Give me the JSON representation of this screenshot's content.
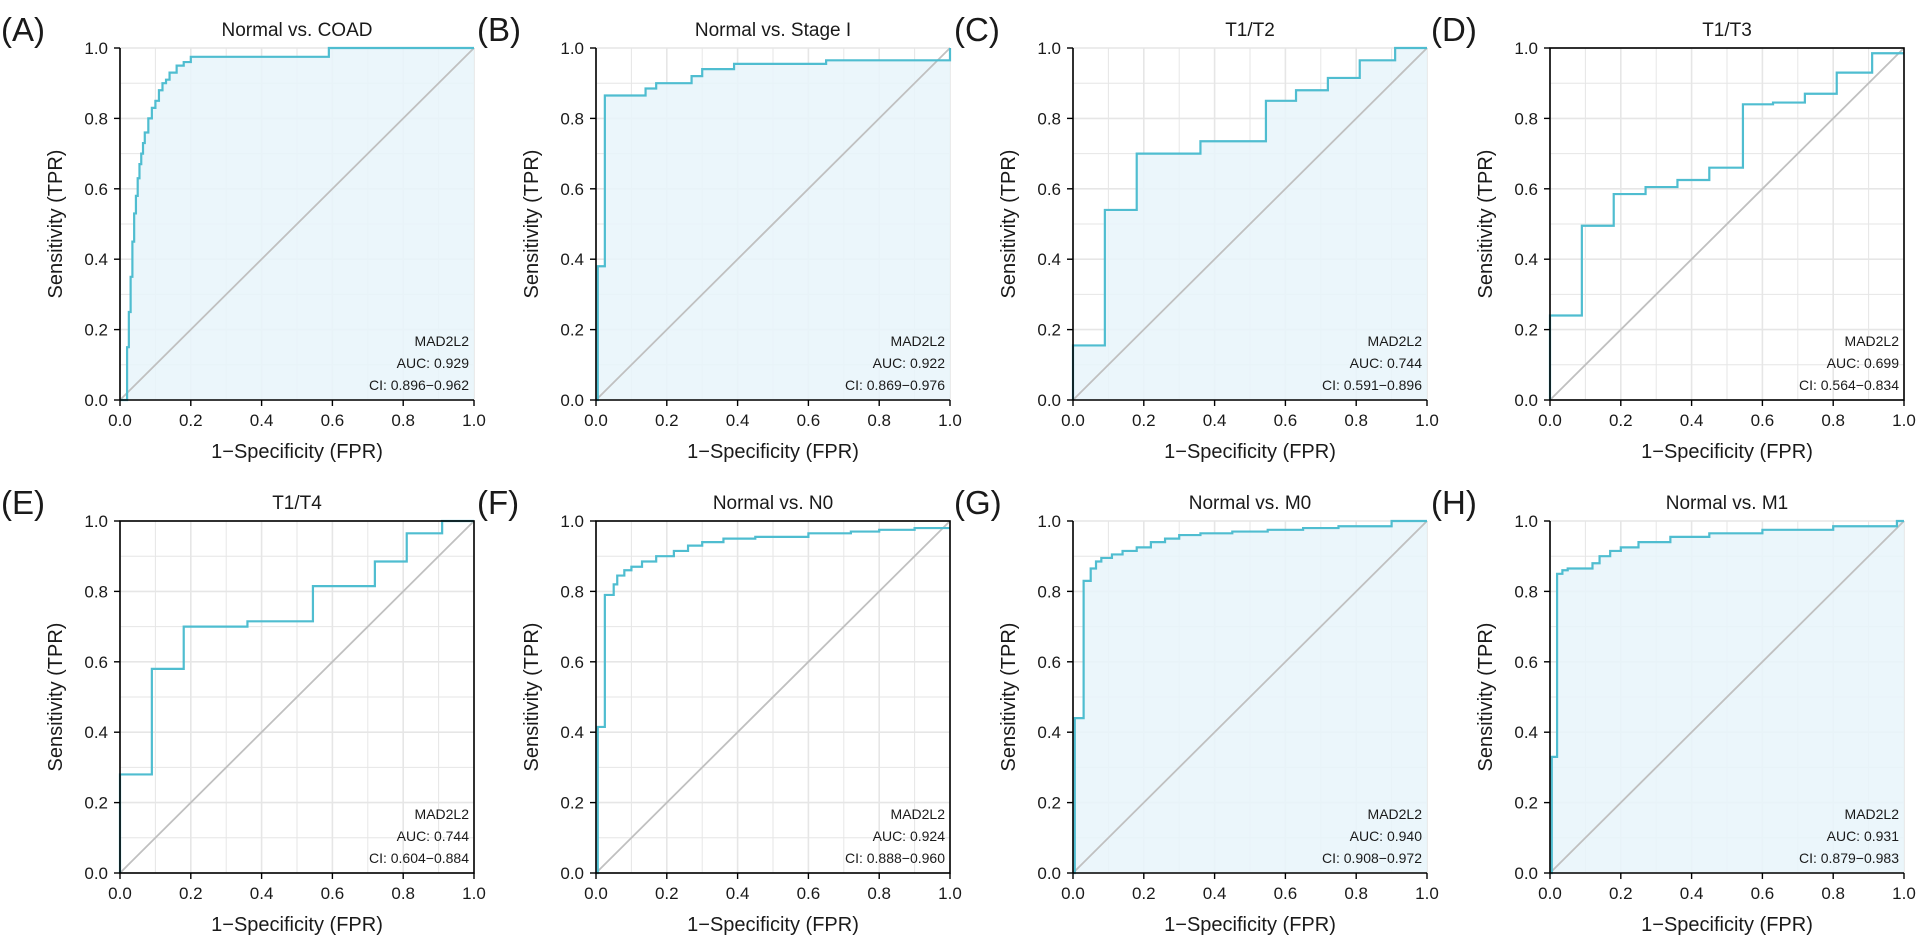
{
  "figure": {
    "panel_letters": [
      "(A)",
      "(B)",
      "(C)",
      "(D)",
      "(E)",
      "(F)",
      "(G)",
      "(H)"
    ],
    "colors": {
      "curve": "#4fbdd0",
      "fill": "#e8f5fa",
      "diagonal": "#c0c0c0",
      "grid": "#e6e6e6",
      "axis": "#000000",
      "text": "#1a1a1a"
    }
  },
  "chart_data": [
    {
      "type": "line",
      "panel": "(A)",
      "title": "Normal vs. COAD",
      "xlabel": "1−Specificity (FPR)",
      "ylabel": "Sensitivity (TPR)",
      "xlim": [
        0,
        1
      ],
      "ylim": [
        0,
        1
      ],
      "xticks": [
        "0.0",
        "0.2",
        "0.4",
        "0.6",
        "0.8",
        "1.0"
      ],
      "yticks": [
        "0.0",
        "0.2",
        "0.4",
        "0.6",
        "0.8",
        "1.0"
      ],
      "grid": true,
      "filled": true,
      "framed": false,
      "legend": [
        "MAD2L2",
        "AUC: 0.929",
        "CI: 0.896−0.962"
      ],
      "x": [
        0,
        0.01,
        0.02,
        0.02,
        0.025,
        0.025,
        0.03,
        0.03,
        0.035,
        0.035,
        0.04,
        0.04,
        0.045,
        0.045,
        0.05,
        0.05,
        0.055,
        0.055,
        0.06,
        0.06,
        0.065,
        0.065,
        0.07,
        0.07,
        0.08,
        0.08,
        0.09,
        0.09,
        0.1,
        0.1,
        0.11,
        0.11,
        0.12,
        0.12,
        0.13,
        0.13,
        0.14,
        0.14,
        0.16,
        0.16,
        0.18,
        0.18,
        0.2,
        0.2,
        0.59,
        0.59,
        1.0
      ],
      "y": [
        0,
        0,
        0,
        0.15,
        0.15,
        0.25,
        0.25,
        0.35,
        0.35,
        0.45,
        0.45,
        0.53,
        0.53,
        0.58,
        0.58,
        0.63,
        0.63,
        0.67,
        0.67,
        0.7,
        0.7,
        0.73,
        0.73,
        0.76,
        0.76,
        0.8,
        0.8,
        0.83,
        0.83,
        0.85,
        0.85,
        0.88,
        0.88,
        0.9,
        0.9,
        0.91,
        0.91,
        0.93,
        0.93,
        0.95,
        0.95,
        0.96,
        0.96,
        0.975,
        0.975,
        1.0,
        1.0
      ]
    },
    {
      "type": "line",
      "panel": "(B)",
      "title": "Normal vs. Stage I",
      "xlabel": "1−Specificity (FPR)",
      "ylabel": "Sensitivity (TPR)",
      "xlim": [
        0,
        1
      ],
      "ylim": [
        0,
        1
      ],
      "xticks": [
        "0.0",
        "0.2",
        "0.4",
        "0.6",
        "0.8",
        "1.0"
      ],
      "yticks": [
        "0.0",
        "0.2",
        "0.4",
        "0.6",
        "0.8",
        "1.0"
      ],
      "grid": true,
      "filled": true,
      "framed": false,
      "legend": [
        "MAD2L2",
        "AUC: 0.922",
        "CI: 0.869−0.976"
      ],
      "x": [
        0,
        0.005,
        0.005,
        0.025,
        0.025,
        0.14,
        0.14,
        0.17,
        0.17,
        0.27,
        0.27,
        0.3,
        0.3,
        0.39,
        0.39,
        0.65,
        0.65,
        1.0,
        1.0
      ],
      "y": [
        0,
        0,
        0.38,
        0.38,
        0.865,
        0.865,
        0.885,
        0.885,
        0.9,
        0.9,
        0.92,
        0.92,
        0.94,
        0.94,
        0.955,
        0.955,
        0.965,
        0.965,
        1.0
      ]
    },
    {
      "type": "line",
      "panel": "(C)",
      "title": "T1/T2",
      "xlabel": "1−Specificity (FPR)",
      "ylabel": "Sensitivity (TPR)",
      "xlim": [
        0,
        1
      ],
      "ylim": [
        0,
        1
      ],
      "xticks": [
        "0.0",
        "0.2",
        "0.4",
        "0.6",
        "0.8",
        "1.0"
      ],
      "yticks": [
        "0.0",
        "0.2",
        "0.4",
        "0.6",
        "0.8",
        "1.0"
      ],
      "grid": true,
      "filled": true,
      "framed": false,
      "legend": [
        "MAD2L2",
        "AUC: 0.744",
        "CI: 0.591−0.896"
      ],
      "x": [
        0,
        0,
        0.09,
        0.09,
        0.18,
        0.18,
        0.36,
        0.36,
        0.545,
        0.545,
        0.63,
        0.63,
        0.72,
        0.72,
        0.81,
        0.81,
        0.91,
        0.91,
        1.0
      ],
      "y": [
        0,
        0.155,
        0.155,
        0.54,
        0.54,
        0.7,
        0.7,
        0.735,
        0.735,
        0.85,
        0.85,
        0.88,
        0.88,
        0.915,
        0.915,
        0.965,
        0.965,
        1.0,
        1.0
      ]
    },
    {
      "type": "line",
      "panel": "(D)",
      "title": "T1/T3",
      "xlabel": "1−Specificity (FPR)",
      "ylabel": "Sensitivity (TPR)",
      "xlim": [
        0,
        1
      ],
      "ylim": [
        0,
        1
      ],
      "xticks": [
        "0.0",
        "0.2",
        "0.4",
        "0.6",
        "0.8",
        "1.0"
      ],
      "yticks": [
        "0.0",
        "0.2",
        "0.4",
        "0.6",
        "0.8",
        "1.0"
      ],
      "grid": true,
      "filled": false,
      "framed": true,
      "legend": [
        "MAD2L2",
        "AUC: 0.699",
        "CI: 0.564−0.834"
      ],
      "x": [
        0,
        0,
        0.09,
        0.09,
        0.18,
        0.18,
        0.27,
        0.27,
        0.36,
        0.36,
        0.45,
        0.45,
        0.545,
        0.545,
        0.63,
        0.63,
        0.72,
        0.72,
        0.81,
        0.81,
        0.91,
        0.91,
        1.0
      ],
      "y": [
        0,
        0.24,
        0.24,
        0.495,
        0.495,
        0.585,
        0.585,
        0.605,
        0.605,
        0.625,
        0.625,
        0.66,
        0.66,
        0.84,
        0.84,
        0.845,
        0.845,
        0.87,
        0.87,
        0.93,
        0.93,
        0.985,
        0.985
      ]
    },
    {
      "type": "line",
      "panel": "(E)",
      "title": "T1/T4",
      "xlabel": "1−Specificity (FPR)",
      "ylabel": "Sensitivity (TPR)",
      "xlim": [
        0,
        1
      ],
      "ylim": [
        0,
        1
      ],
      "xticks": [
        "0.0",
        "0.2",
        "0.4",
        "0.6",
        "0.8",
        "1.0"
      ],
      "yticks": [
        "0.0",
        "0.2",
        "0.4",
        "0.6",
        "0.8",
        "1.0"
      ],
      "grid": true,
      "filled": false,
      "framed": true,
      "legend": [
        "MAD2L2",
        "AUC: 0.744",
        "CI: 0.604−0.884"
      ],
      "x": [
        0,
        0,
        0.09,
        0.09,
        0.18,
        0.18,
        0.36,
        0.36,
        0.545,
        0.545,
        0.72,
        0.72,
        0.81,
        0.81,
        0.91,
        0.91,
        1.0
      ],
      "y": [
        0,
        0.28,
        0.28,
        0.58,
        0.58,
        0.7,
        0.7,
        0.715,
        0.715,
        0.815,
        0.815,
        0.885,
        0.885,
        0.965,
        0.965,
        1.0,
        1.0
      ]
    },
    {
      "type": "line",
      "panel": "(F)",
      "title": "Normal vs. N0",
      "xlabel": "1−Specificity (FPR)",
      "ylabel": "Sensitivity (TPR)",
      "xlim": [
        0,
        1
      ],
      "ylim": [
        0,
        1
      ],
      "xticks": [
        "0.0",
        "0.2",
        "0.4",
        "0.6",
        "0.8",
        "1.0"
      ],
      "yticks": [
        "0.0",
        "0.2",
        "0.4",
        "0.6",
        "0.8",
        "1.0"
      ],
      "grid": true,
      "filled": false,
      "framed": true,
      "legend": [
        "MAD2L2",
        "AUC: 0.924",
        "CI: 0.888−0.960"
      ],
      "x": [
        0,
        0.005,
        0.005,
        0.025,
        0.025,
        0.05,
        0.05,
        0.06,
        0.06,
        0.08,
        0.08,
        0.1,
        0.1,
        0.13,
        0.13,
        0.17,
        0.17,
        0.22,
        0.22,
        0.26,
        0.26,
        0.3,
        0.3,
        0.36,
        0.36,
        0.45,
        0.45,
        0.6,
        0.6,
        0.72,
        0.72,
        0.8,
        0.8,
        0.9,
        0.9,
        1.0
      ],
      "y": [
        0,
        0,
        0.415,
        0.415,
        0.79,
        0.79,
        0.82,
        0.82,
        0.845,
        0.845,
        0.86,
        0.86,
        0.87,
        0.87,
        0.885,
        0.885,
        0.9,
        0.9,
        0.915,
        0.915,
        0.93,
        0.93,
        0.94,
        0.94,
        0.95,
        0.95,
        0.955,
        0.955,
        0.965,
        0.965,
        0.97,
        0.97,
        0.975,
        0.975,
        0.98,
        0.98
      ]
    },
    {
      "type": "line",
      "panel": "(G)",
      "title": "Normal vs. M0",
      "xlabel": "1−Specificity (FPR)",
      "ylabel": "Sensitivity (TPR)",
      "xlim": [
        0,
        1
      ],
      "ylim": [
        0,
        1
      ],
      "xticks": [
        "0.0",
        "0.2",
        "0.4",
        "0.6",
        "0.8",
        "1.0"
      ],
      "yticks": [
        "0.0",
        "0.2",
        "0.4",
        "0.6",
        "0.8",
        "1.0"
      ],
      "grid": true,
      "filled": true,
      "framed": false,
      "legend": [
        "MAD2L2",
        "AUC: 0.940",
        "CI: 0.908−0.972"
      ],
      "x": [
        0,
        0.005,
        0.005,
        0.03,
        0.03,
        0.05,
        0.05,
        0.065,
        0.065,
        0.08,
        0.08,
        0.11,
        0.11,
        0.14,
        0.14,
        0.18,
        0.18,
        0.22,
        0.22,
        0.26,
        0.26,
        0.3,
        0.3,
        0.36,
        0.36,
        0.45,
        0.45,
        0.55,
        0.55,
        0.65,
        0.65,
        0.75,
        0.75,
        0.9,
        0.9,
        1.0
      ],
      "y": [
        0,
        0,
        0.44,
        0.44,
        0.83,
        0.83,
        0.865,
        0.865,
        0.885,
        0.885,
        0.895,
        0.895,
        0.905,
        0.905,
        0.915,
        0.915,
        0.925,
        0.925,
        0.94,
        0.94,
        0.95,
        0.95,
        0.96,
        0.96,
        0.965,
        0.965,
        0.97,
        0.97,
        0.975,
        0.975,
        0.98,
        0.98,
        0.985,
        0.985,
        1.0,
        1.0
      ]
    },
    {
      "type": "line",
      "panel": "(H)",
      "title": "Normal vs. M1",
      "xlabel": "1−Specificity (FPR)",
      "ylabel": "Sensitivity (TPR)",
      "xlim": [
        0,
        1
      ],
      "ylim": [
        0,
        1
      ],
      "xticks": [
        "0.0",
        "0.2",
        "0.4",
        "0.6",
        "0.8",
        "1.0"
      ],
      "yticks": [
        "0.0",
        "0.2",
        "0.4",
        "0.6",
        "0.8",
        "1.0"
      ],
      "grid": true,
      "filled": true,
      "framed": false,
      "legend": [
        "MAD2L2",
        "AUC: 0.931",
        "CI: 0.879−0.983"
      ],
      "x": [
        0,
        0.005,
        0.005,
        0.02,
        0.02,
        0.035,
        0.035,
        0.05,
        0.05,
        0.12,
        0.12,
        0.14,
        0.14,
        0.17,
        0.17,
        0.2,
        0.2,
        0.25,
        0.25,
        0.34,
        0.34,
        0.45,
        0.45,
        0.6,
        0.6,
        0.8,
        0.8,
        0.98,
        0.98,
        1.0
      ],
      "y": [
        0,
        0,
        0.33,
        0.33,
        0.85,
        0.85,
        0.86,
        0.86,
        0.865,
        0.865,
        0.88,
        0.88,
        0.9,
        0.9,
        0.915,
        0.915,
        0.925,
        0.925,
        0.94,
        0.94,
        0.955,
        0.955,
        0.965,
        0.965,
        0.975,
        0.975,
        0.985,
        0.985,
        1.0,
        1.0
      ]
    }
  ]
}
